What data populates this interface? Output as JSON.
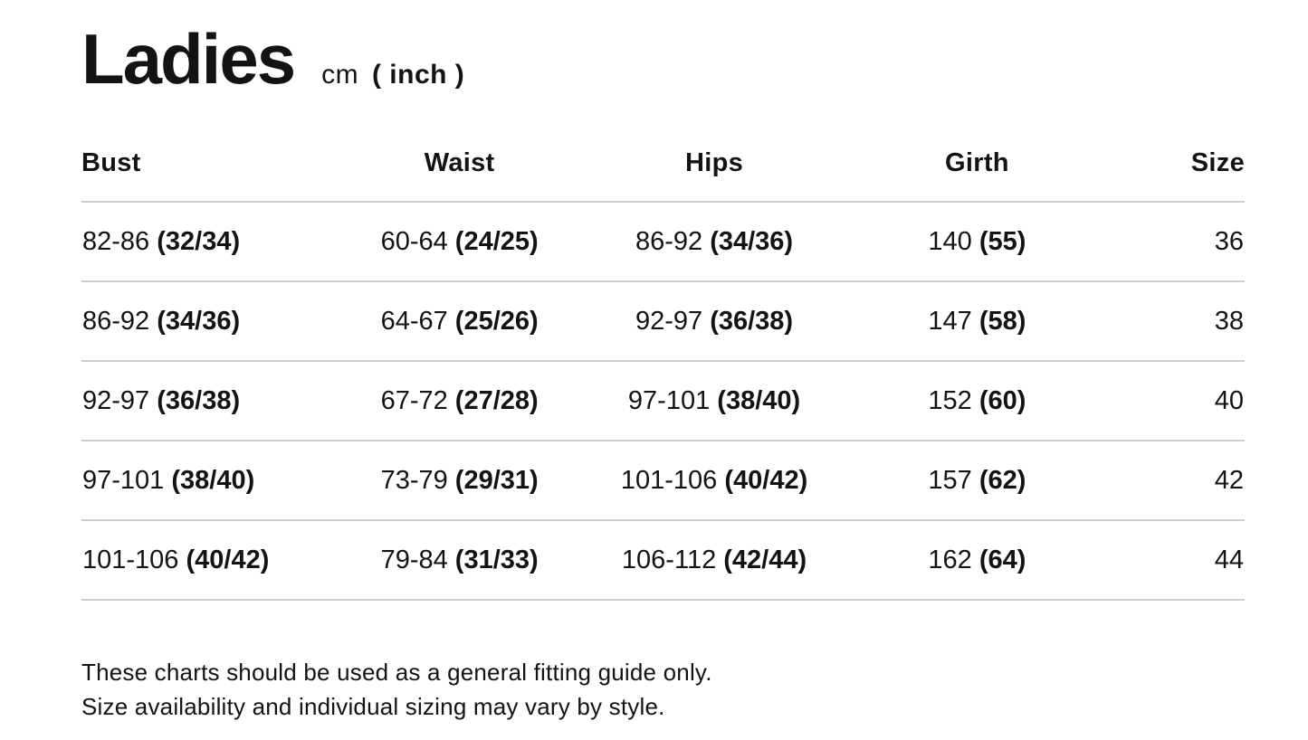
{
  "page": {
    "title": "Ladies",
    "units_prefix": "cm",
    "units_paren": "( inch )"
  },
  "table": {
    "columns": [
      "Bust",
      "Waist",
      "Hips",
      "Girth",
      "Size"
    ],
    "rows": [
      {
        "bust": {
          "cm": "82-86",
          "inch": "(32/34)"
        },
        "waist": {
          "cm": "60-64",
          "inch": "(24/25)"
        },
        "hips": {
          "cm": "86-92",
          "inch": "(34/36)"
        },
        "girth": {
          "cm": "140",
          "inch": "(55)"
        },
        "size": "36"
      },
      {
        "bust": {
          "cm": "86-92",
          "inch": "(34/36)"
        },
        "waist": {
          "cm": "64-67",
          "inch": "(25/26)"
        },
        "hips": {
          "cm": "92-97",
          "inch": "(36/38)"
        },
        "girth": {
          "cm": "147",
          "inch": "(58)"
        },
        "size": "38"
      },
      {
        "bust": {
          "cm": "92-97",
          "inch": "(36/38)"
        },
        "waist": {
          "cm": "67-72",
          "inch": "(27/28)"
        },
        "hips": {
          "cm": "97-101",
          "inch": "(38/40)"
        },
        "girth": {
          "cm": "152",
          "inch": "(60)"
        },
        "size": "40"
      },
      {
        "bust": {
          "cm": "97-101",
          "inch": "(38/40)"
        },
        "waist": {
          "cm": "73-79",
          "inch": "(29/31)"
        },
        "hips": {
          "cm": "101-106",
          "inch": "(40/42)"
        },
        "girth": {
          "cm": "157",
          "inch": "(62)"
        },
        "size": "42"
      },
      {
        "bust": {
          "cm": "101-106",
          "inch": "(40/42)"
        },
        "waist": {
          "cm": "79-84",
          "inch": "(31/33)"
        },
        "hips": {
          "cm": "106-112",
          "inch": "(42/44)"
        },
        "girth": {
          "cm": "162",
          "inch": "(64)"
        },
        "size": "44"
      }
    ]
  },
  "footer": {
    "line1": "These charts should be used as a general fitting guide only.",
    "line2": "Size availability and individual sizing may vary by style."
  },
  "colors": {
    "text": "#131313",
    "divider": "#cccccc",
    "background": "#ffffff"
  }
}
